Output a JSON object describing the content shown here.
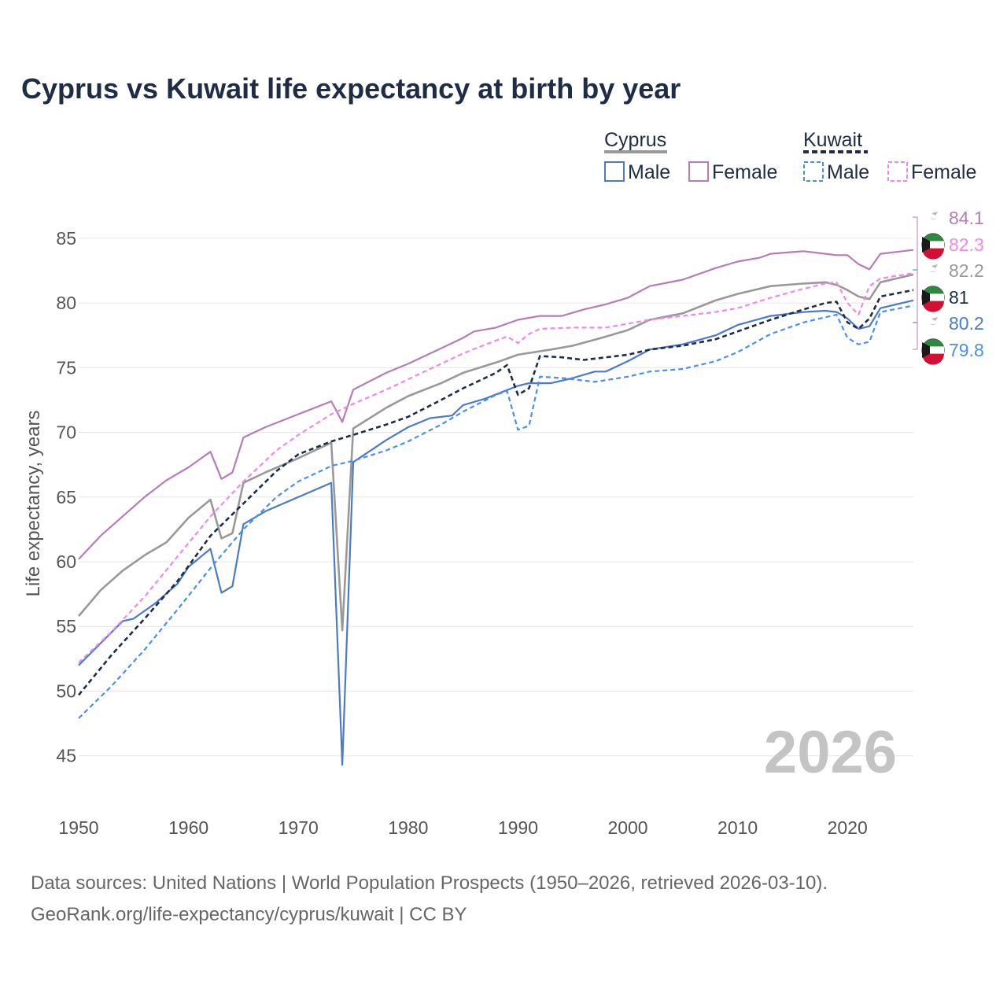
{
  "title": "Cyprus vs Kuwait life expectancy at birth by year",
  "footer": {
    "line1": "Data sources: United Nations | World Population Prospects (1950–2026, retrieved 2026-03-10).",
    "line2": "GeoRank.org/life-expectancy/cyprus/kuwait | CC BY"
  },
  "legend": {
    "groups": [
      {
        "country": "Cyprus",
        "color": "#999999",
        "dash": false,
        "items": [
          {
            "label": "Male",
            "color": "#4a7ac8"
          },
          {
            "label": "Female",
            "color": "#b67cb8"
          }
        ]
      },
      {
        "country": "Kuwait",
        "color": "#1e2d45",
        "dash": true,
        "items": [
          {
            "label": "Male",
            "color": "#4a8ef0"
          },
          {
            "label": "Female",
            "color": "#f087ec"
          }
        ]
      }
    ]
  },
  "chart_data": {
    "type": "line",
    "title": "Cyprus vs Kuwait life expectancy at birth by year",
    "xlabel": "",
    "ylabel": "Life expectancy, years",
    "xlim": [
      1950,
      2026
    ],
    "ylim": [
      42,
      87
    ],
    "xticks": [
      1950,
      1960,
      1970,
      1980,
      1990,
      2000,
      2010,
      2020
    ],
    "yticks": [
      45,
      50,
      55,
      60,
      65,
      70,
      75,
      80,
      85
    ],
    "year_watermark": "2026",
    "series": [
      {
        "name": "Cyprus (total)",
        "country": "Cyprus",
        "color": "#999999",
        "dash": false,
        "end_value": "82.2",
        "points": [
          [
            1950,
            55.8
          ],
          [
            1952,
            57.8
          ],
          [
            1954,
            59.3
          ],
          [
            1956,
            60.5
          ],
          [
            1958,
            61.5
          ],
          [
            1960,
            63.4
          ],
          [
            1962,
            64.8
          ],
          [
            1963,
            61.8
          ],
          [
            1964,
            62.2
          ],
          [
            1965,
            66.1
          ],
          [
            1967,
            66.9
          ],
          [
            1970,
            68.0
          ],
          [
            1973,
            69.2
          ],
          [
            1974,
            54.7
          ],
          [
            1975,
            70.3
          ],
          [
            1978,
            71.9
          ],
          [
            1980,
            72.8
          ],
          [
            1983,
            73.8
          ],
          [
            1985,
            74.6
          ],
          [
            1988,
            75.4
          ],
          [
            1990,
            76.0
          ],
          [
            1993,
            76.4
          ],
          [
            1995,
            76.7
          ],
          [
            1998,
            77.4
          ],
          [
            2000,
            77.9
          ],
          [
            2002,
            78.7
          ],
          [
            2005,
            79.2
          ],
          [
            2008,
            80.2
          ],
          [
            2010,
            80.7
          ],
          [
            2013,
            81.3
          ],
          [
            2016,
            81.5
          ],
          [
            2018,
            81.6
          ],
          [
            2019,
            81.4
          ],
          [
            2020,
            81.0
          ],
          [
            2021,
            80.5
          ],
          [
            2022,
            80.3
          ],
          [
            2023,
            81.6
          ],
          [
            2026,
            82.2
          ]
        ]
      },
      {
        "name": "Cyprus Male",
        "country": "Cyprus",
        "color": "#4a7ac8",
        "dash": false,
        "end_value": "80.2",
        "points": [
          [
            1950,
            52.0
          ],
          [
            1952,
            53.7
          ],
          [
            1954,
            55.4
          ],
          [
            1955,
            55.6
          ],
          [
            1957,
            56.8
          ],
          [
            1959,
            58.3
          ],
          [
            1960,
            59.6
          ],
          [
            1962,
            61.0
          ],
          [
            1963,
            57.6
          ],
          [
            1964,
            58.1
          ],
          [
            1965,
            62.9
          ],
          [
            1967,
            63.9
          ],
          [
            1970,
            65.0
          ],
          [
            1973,
            66.1
          ],
          [
            1974,
            44.3
          ],
          [
            1975,
            67.7
          ],
          [
            1978,
            69.4
          ],
          [
            1980,
            70.4
          ],
          [
            1982,
            71.1
          ],
          [
            1984,
            71.3
          ],
          [
            1985,
            72.1
          ],
          [
            1987,
            72.6
          ],
          [
            1990,
            73.6
          ],
          [
            1991,
            73.8
          ],
          [
            1993,
            73.8
          ],
          [
            1995,
            74.2
          ],
          [
            1997,
            74.7
          ],
          [
            1998,
            74.7
          ],
          [
            2000,
            75.5
          ],
          [
            2002,
            76.4
          ],
          [
            2005,
            76.8
          ],
          [
            2008,
            77.5
          ],
          [
            2010,
            78.3
          ],
          [
            2013,
            79.0
          ],
          [
            2016,
            79.3
          ],
          [
            2018,
            79.4
          ],
          [
            2019,
            79.3
          ],
          [
            2020,
            78.8
          ],
          [
            2021,
            78.0
          ],
          [
            2022,
            78.2
          ],
          [
            2023,
            79.6
          ],
          [
            2026,
            80.2
          ]
        ]
      },
      {
        "name": "Cyprus Female",
        "country": "Cyprus",
        "color": "#b67cb8",
        "dash": false,
        "end_value": "84.1",
        "points": [
          [
            1950,
            60.2
          ],
          [
            1952,
            62.0
          ],
          [
            1954,
            63.5
          ],
          [
            1956,
            65.0
          ],
          [
            1958,
            66.3
          ],
          [
            1960,
            67.3
          ],
          [
            1962,
            68.5
          ],
          [
            1963,
            66.4
          ],
          [
            1964,
            66.9
          ],
          [
            1965,
            69.6
          ],
          [
            1967,
            70.4
          ],
          [
            1970,
            71.4
          ],
          [
            1973,
            72.4
          ],
          [
            1974,
            70.8
          ],
          [
            1975,
            73.3
          ],
          [
            1978,
            74.6
          ],
          [
            1980,
            75.3
          ],
          [
            1983,
            76.5
          ],
          [
            1985,
            77.3
          ],
          [
            1986,
            77.8
          ],
          [
            1988,
            78.1
          ],
          [
            1990,
            78.7
          ],
          [
            1992,
            79.0
          ],
          [
            1994,
            79.0
          ],
          [
            1996,
            79.5
          ],
          [
            1998,
            79.9
          ],
          [
            2000,
            80.4
          ],
          [
            2002,
            81.3
          ],
          [
            2005,
            81.8
          ],
          [
            2008,
            82.7
          ],
          [
            2010,
            83.2
          ],
          [
            2012,
            83.5
          ],
          [
            2013,
            83.8
          ],
          [
            2016,
            84.0
          ],
          [
            2018,
            83.8
          ],
          [
            2019,
            83.7
          ],
          [
            2020,
            83.7
          ],
          [
            2021,
            83.0
          ],
          [
            2022,
            82.6
          ],
          [
            2023,
            83.8
          ],
          [
            2026,
            84.1
          ]
        ]
      },
      {
        "name": "Kuwait (total)",
        "country": "Kuwait",
        "color": "#1e2d45",
        "dash": true,
        "end_value": "81",
        "points": [
          [
            1950,
            49.7
          ],
          [
            1953,
            52.8
          ],
          [
            1956,
            55.6
          ],
          [
            1959,
            58.5
          ],
          [
            1962,
            62.0
          ],
          [
            1965,
            64.5
          ],
          [
            1968,
            67.0
          ],
          [
            1970,
            68.3
          ],
          [
            1973,
            69.3
          ],
          [
            1975,
            69.8
          ],
          [
            1978,
            70.6
          ],
          [
            1980,
            71.2
          ],
          [
            1983,
            72.5
          ],
          [
            1985,
            73.4
          ],
          [
            1988,
            74.6
          ],
          [
            1989,
            75.2
          ],
          [
            1990,
            72.9
          ],
          [
            1991,
            73.4
          ],
          [
            1992,
            75.9
          ],
          [
            1994,
            75.8
          ],
          [
            1996,
            75.6
          ],
          [
            1998,
            75.8
          ],
          [
            2000,
            76.0
          ],
          [
            2002,
            76.4
          ],
          [
            2005,
            76.7
          ],
          [
            2008,
            77.2
          ],
          [
            2010,
            77.8
          ],
          [
            2013,
            78.7
          ],
          [
            2016,
            79.5
          ],
          [
            2018,
            80.0
          ],
          [
            2019,
            80.1
          ],
          [
            2020,
            78.5
          ],
          [
            2021,
            78.0
          ],
          [
            2022,
            78.8
          ],
          [
            2023,
            80.5
          ],
          [
            2026,
            81.0
          ]
        ]
      },
      {
        "name": "Kuwait Male",
        "country": "Kuwait",
        "color": "#4a8ef0",
        "dash": true,
        "end_value": "79.8",
        "points": [
          [
            1950,
            47.9
          ],
          [
            1953,
            50.4
          ],
          [
            1956,
            53.2
          ],
          [
            1959,
            56.3
          ],
          [
            1962,
            59.5
          ],
          [
            1965,
            62.5
          ],
          [
            1968,
            65.0
          ],
          [
            1970,
            66.2
          ],
          [
            1973,
            67.4
          ],
          [
            1975,
            67.8
          ],
          [
            1978,
            68.6
          ],
          [
            1980,
            69.3
          ],
          [
            1983,
            70.6
          ],
          [
            1985,
            71.6
          ],
          [
            1988,
            72.9
          ],
          [
            1989,
            73.2
          ],
          [
            1990,
            70.2
          ],
          [
            1991,
            70.5
          ],
          [
            1992,
            74.3
          ],
          [
            1994,
            74.2
          ],
          [
            1997,
            73.9
          ],
          [
            2000,
            74.3
          ],
          [
            2002,
            74.7
          ],
          [
            2005,
            74.9
          ],
          [
            2008,
            75.5
          ],
          [
            2010,
            76.2
          ],
          [
            2013,
            77.6
          ],
          [
            2016,
            78.5
          ],
          [
            2018,
            78.9
          ],
          [
            2019,
            79.1
          ],
          [
            2020,
            77.3
          ],
          [
            2021,
            76.8
          ],
          [
            2022,
            77.0
          ],
          [
            2023,
            79.3
          ],
          [
            2026,
            79.8
          ]
        ]
      },
      {
        "name": "Kuwait Female",
        "country": "Kuwait",
        "color": "#f087ec",
        "dash": true,
        "end_value": "82.3",
        "points": [
          [
            1950,
            52.2
          ],
          [
            1953,
            54.6
          ],
          [
            1956,
            57.3
          ],
          [
            1959,
            60.4
          ],
          [
            1962,
            63.5
          ],
          [
            1965,
            66.2
          ],
          [
            1968,
            68.6
          ],
          [
            1970,
            69.8
          ],
          [
            1973,
            71.4
          ],
          [
            1975,
            72.2
          ],
          [
            1978,
            73.3
          ],
          [
            1980,
            74.1
          ],
          [
            1983,
            75.3
          ],
          [
            1985,
            76.1
          ],
          [
            1988,
            77.1
          ],
          [
            1989,
            77.4
          ],
          [
            1990,
            76.9
          ],
          [
            1991,
            77.6
          ],
          [
            1992,
            78.0
          ],
          [
            1995,
            78.1
          ],
          [
            1998,
            78.1
          ],
          [
            2000,
            78.4
          ],
          [
            2002,
            78.7
          ],
          [
            2005,
            79.0
          ],
          [
            2008,
            79.3
          ],
          [
            2010,
            79.6
          ],
          [
            2013,
            80.4
          ],
          [
            2016,
            81.1
          ],
          [
            2018,
            81.5
          ],
          [
            2019,
            81.6
          ],
          [
            2020,
            80.0
          ],
          [
            2021,
            79.1
          ],
          [
            2022,
            81.3
          ],
          [
            2023,
            81.9
          ],
          [
            2026,
            82.3
          ]
        ]
      }
    ]
  }
}
